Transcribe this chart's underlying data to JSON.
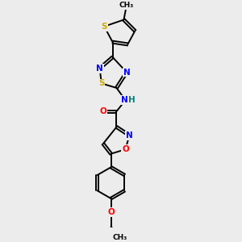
{
  "bg_color": "#ececec",
  "atom_colors": {
    "S": "#ccaa00",
    "N": "#0000ff",
    "O": "#ff0000",
    "C": "#000000",
    "NH": "#008080"
  },
  "bond_color": "#000000",
  "figsize": [
    3.0,
    3.0
  ],
  "dpi": 100,
  "xlim": [
    0.3,
    2.1
  ],
  "ylim": [
    -0.5,
    3.4
  ]
}
